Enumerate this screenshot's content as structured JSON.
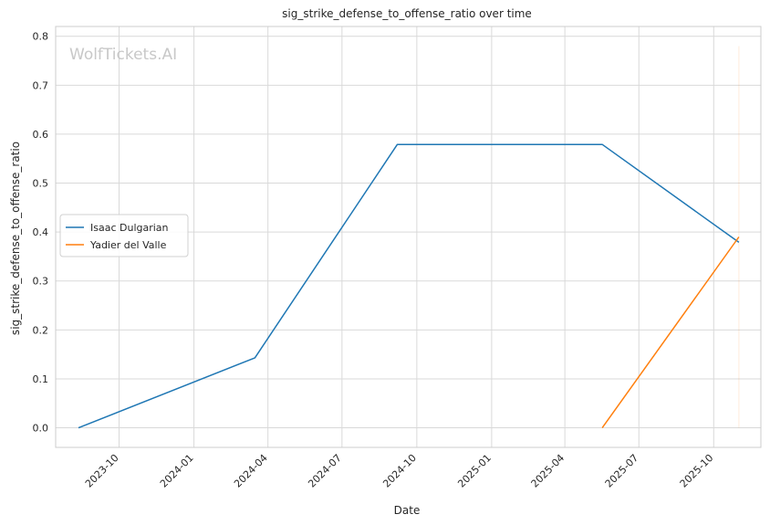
{
  "chart_data": {
    "type": "line",
    "title": "sig_strike_defense_to_offense_ratio over time",
    "xlabel": "Date",
    "ylabel": "sig_strike_defense_to_offense_ratio",
    "watermark": "WolfTickets.AI",
    "x_ticks": [
      "2023-10",
      "2024-01",
      "2024-04",
      "2024-07",
      "2024-10",
      "2025-01",
      "2025-04",
      "2025-07",
      "2025-10"
    ],
    "y_ticks": [
      0.0,
      0.1,
      0.2,
      0.3,
      0.4,
      0.5,
      0.6,
      0.7,
      0.8
    ],
    "y_tick_labels": [
      "0.0",
      "0.1",
      "0.2",
      "0.3",
      "0.4",
      "0.5",
      "0.6",
      "0.7",
      "0.8"
    ],
    "ylim": [
      -0.04,
      0.82
    ],
    "xlim": [
      "2023-07-15",
      "2025-11-28"
    ],
    "grid": true,
    "legend": "center-left",
    "series": [
      {
        "name": "Isaac Dulgarian",
        "color": "#1f77b4",
        "points": [
          {
            "x": "2023-08-12",
            "y": 0.0
          },
          {
            "x": "2024-03-16",
            "y": 0.143
          },
          {
            "x": "2024-09-07",
            "y": 0.579
          },
          {
            "x": "2025-05-17",
            "y": 0.579
          },
          {
            "x": "2025-11-01",
            "y": 0.379
          }
        ]
      },
      {
        "name": "Yadier del Valle",
        "color": "#ff7f0e",
        "points": [
          {
            "x": "2025-05-17",
            "y": 0.0
          },
          {
            "x": "2025-11-01",
            "y": 0.39
          }
        ]
      }
    ]
  }
}
